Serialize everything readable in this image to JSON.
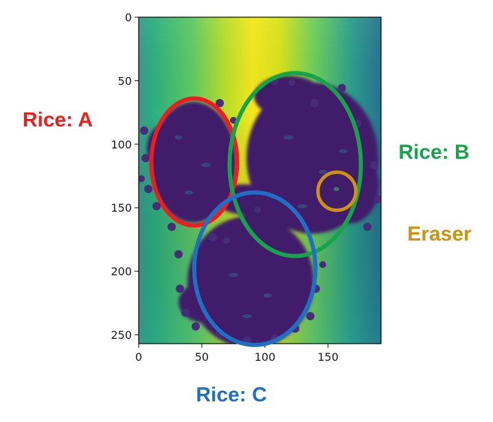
{
  "chart_data": {
    "type": "heatmap",
    "colormap": "viridis",
    "xlim": [
      0,
      192
    ],
    "ylim": [
      257,
      0
    ],
    "x_ticks": [
      0,
      50,
      100,
      150
    ],
    "y_ticks": [
      0,
      50,
      100,
      150,
      200,
      250
    ],
    "x_tick_labels": [
      "0",
      "50",
      "100",
      "150"
    ],
    "y_tick_labels": [
      "0",
      "50",
      "100",
      "150",
      "200",
      "250"
    ],
    "grid": false,
    "annotations": [
      {
        "label": "Rice: A",
        "color": "#ee1c1c",
        "cx": 44,
        "cy": 114,
        "rx": 34,
        "ry": 50
      },
      {
        "label": "Rice: B",
        "color": "#17a34a",
        "cx": 124,
        "cy": 116,
        "rx": 52,
        "ry": 72
      },
      {
        "label": "Eraser",
        "color": "#cc9211",
        "cx": 157,
        "cy": 137,
        "rx": 15,
        "ry": 15
      },
      {
        "label": "Rice: C",
        "color": "#1f6fc4",
        "cx": 92,
        "cy": 198,
        "rx": 48,
        "ry": 60
      }
    ]
  }
}
